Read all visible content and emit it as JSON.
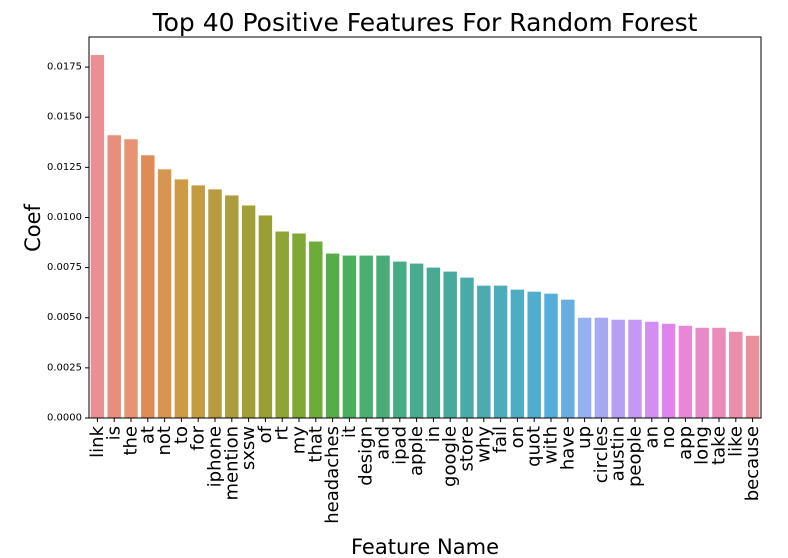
{
  "chart_data": {
    "type": "bar",
    "title": "Top 40 Positive Features For Random Forest",
    "xlabel": "Feature Name",
    "ylabel": "Coef",
    "ylim": [
      0,
      0.019
    ],
    "yticks": [
      "0.0000",
      "0.0025",
      "0.0050",
      "0.0075",
      "0.0100",
      "0.0125",
      "0.0150",
      "0.0175"
    ],
    "ytick_values": [
      0,
      0.0025,
      0.005,
      0.0075,
      0.01,
      0.0125,
      0.015,
      0.0175
    ],
    "grid": false,
    "categories": [
      "link",
      "is",
      "the",
      "at",
      "not",
      "to",
      "for",
      "iphone",
      "mention",
      "sxsw",
      "of",
      "rt",
      "my",
      "that",
      "headaches",
      "it",
      "design",
      "and",
      "ipad",
      "apple",
      "in",
      "google",
      "store",
      "why",
      "fail",
      "on",
      "quot",
      "with",
      "have",
      "up",
      "circles",
      "austin",
      "people",
      "an",
      "no",
      "app",
      "long",
      "take",
      "like",
      "because"
    ],
    "values": [
      0.0181,
      0.0141,
      0.0139,
      0.0131,
      0.0124,
      0.0119,
      0.0116,
      0.0114,
      0.0111,
      0.0106,
      0.0101,
      0.0093,
      0.0092,
      0.0088,
      0.0082,
      0.0081,
      0.0081,
      0.0081,
      0.0078,
      0.0077,
      0.0075,
      0.0073,
      0.007,
      0.0066,
      0.0066,
      0.0064,
      0.0063,
      0.0062,
      0.0059,
      0.005,
      0.005,
      0.0049,
      0.0049,
      0.0048,
      0.0047,
      0.0046,
      0.0045,
      0.0045,
      0.0043,
      0.0041
    ],
    "colors": [
      "#ea9095",
      "#ea8e7c",
      "#e69474",
      "#e08b56",
      "#d69550",
      "#cf9a46",
      "#c59b42",
      "#b99a3e",
      "#ad9c3e",
      "#a39f38",
      "#999f33",
      "#8ea535",
      "#7fa934",
      "#6dab3b",
      "#55ad4a",
      "#4aae5a",
      "#4aaf70",
      "#49ac77",
      "#47ab85",
      "#47ab8d",
      "#48aa93",
      "#48aa9d",
      "#4aaaa7",
      "#4babb1",
      "#4dacbb",
      "#4eadc4",
      "#4fadce",
      "#54addb",
      "#68addf",
      "#94b0f0",
      "#a8a8f2",
      "#b6a0f4",
      "#c498f3",
      "#d38df3",
      "#e183ec",
      "#e887da",
      "#e98ac8",
      "#e98cba",
      "#ea8eab",
      "#ea909d"
    ]
  }
}
